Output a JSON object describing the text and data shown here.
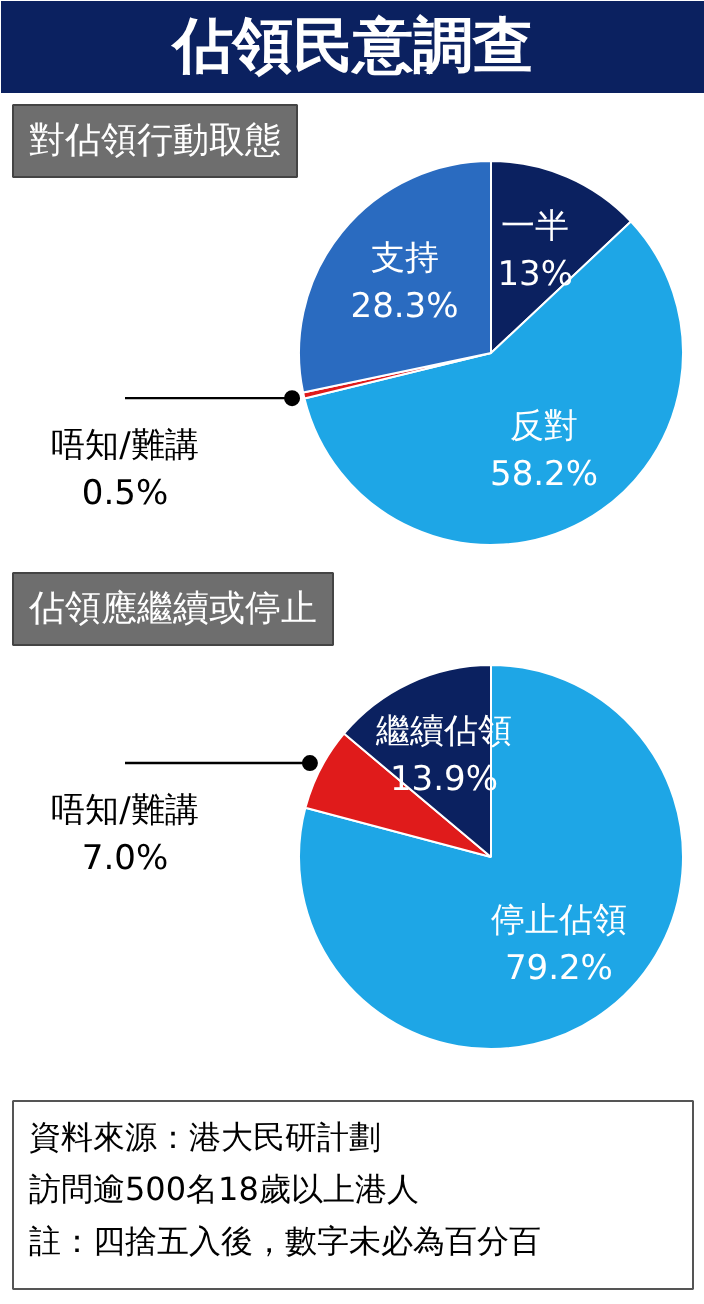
{
  "chart_data": [
    {
      "type": "pie",
      "title": "佔領民意調查",
      "subtitle": "對佔領行動取態",
      "categories": [
        "一半",
        "反對",
        "唔知/難講",
        "支持"
      ],
      "values": [
        13,
        58.2,
        0.5,
        28.3
      ],
      "colors": [
        "#0b2160",
        "#1ea6e6",
        "#e01b1b",
        "#2a6bc0"
      ],
      "value_labels": [
        "13%",
        "58.2%",
        "0.5%",
        "28.3%"
      ]
    },
    {
      "type": "pie",
      "title": "佔領應繼續或停止",
      "categories": [
        "停止佔領",
        "唔知/難講",
        "繼續佔領"
      ],
      "values": [
        79.2,
        7.0,
        13.9
      ],
      "colors": [
        "#1ea6e6",
        "#e01b1b",
        "#0b2160"
      ],
      "value_labels": [
        "79.2%",
        "7.0%",
        "13.9%"
      ],
      "annotations": [
        "資料來源：港大民研計劃",
        "訪問逾500名18歲以上港人",
        "註：四捨五入後，數字未必為百分百"
      ]
    }
  ]
}
